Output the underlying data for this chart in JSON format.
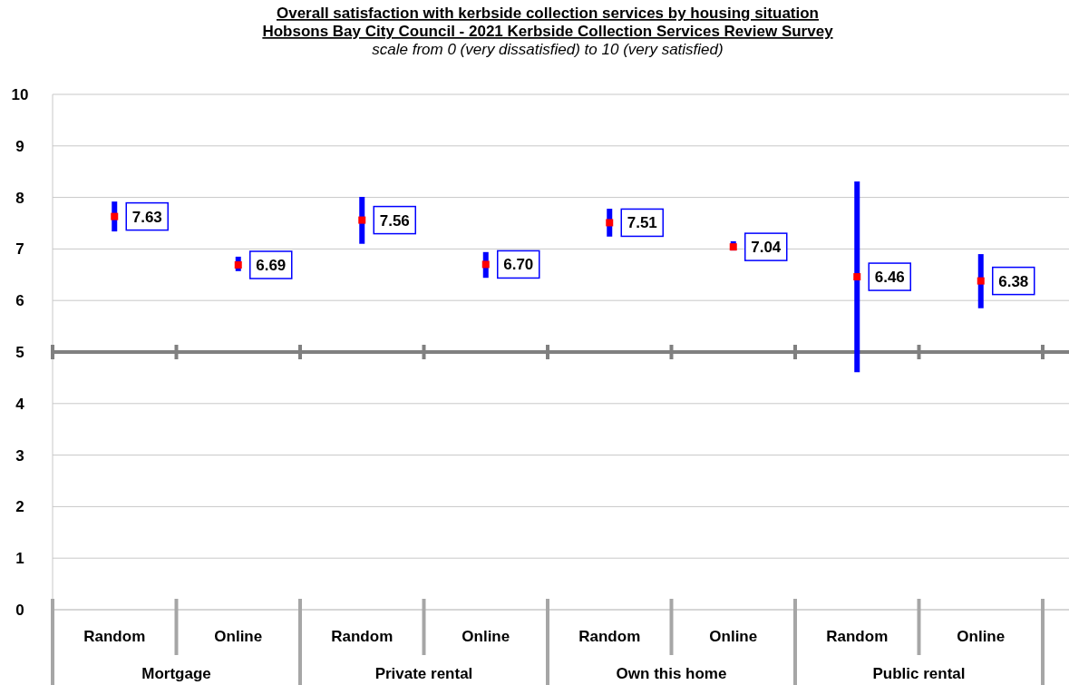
{
  "chart_data": {
    "type": "scatter",
    "title": "Overall satisfaction with kerbside collection services by housing situation\nHobsons Bay City Council -  2021 Kerbside Collection Services Review Survey",
    "subtitle": "scale from 0 (very dissatisfied) to 10 (very satisfied)",
    "categories": [
      "Random",
      "Online",
      "Random",
      "Online",
      "Random",
      "Online",
      "Random",
      "Online"
    ],
    "annotations": [
      "Mortgage",
      "Private rental",
      "Own this home",
      "Public rental"
    ],
    "series": [
      {
        "color": "#ff0000",
        "values": [
          7.63,
          6.69,
          7.56,
          6.7,
          7.51,
          7.04,
          6.46,
          6.38
        ],
        "errors": [
          [
            7.34,
            7.92
          ],
          [
            6.57,
            6.85
          ],
          [
            7.1,
            8.01
          ],
          [
            6.44,
            6.94
          ],
          [
            7.24,
            7.78
          ],
          [
            6.97,
            7.15
          ],
          [
            4.61,
            8.31
          ],
          [
            5.85,
            6.9
          ]
        ],
        "value_labels": [
          "7.63",
          "6.69",
          "7.56",
          "6.70",
          "7.51",
          "7.04",
          "6.46",
          "6.38"
        ]
      }
    ],
    "ylim": [
      0,
      10
    ],
    "yticks": [
      0,
      1,
      2,
      3,
      4,
      5,
      6,
      7,
      8,
      9,
      10
    ],
    "grid": "y",
    "marker": "square",
    "ref_lines": [
      {
        "axis": "y",
        "value": 5,
        "color": "#808080"
      }
    ]
  }
}
